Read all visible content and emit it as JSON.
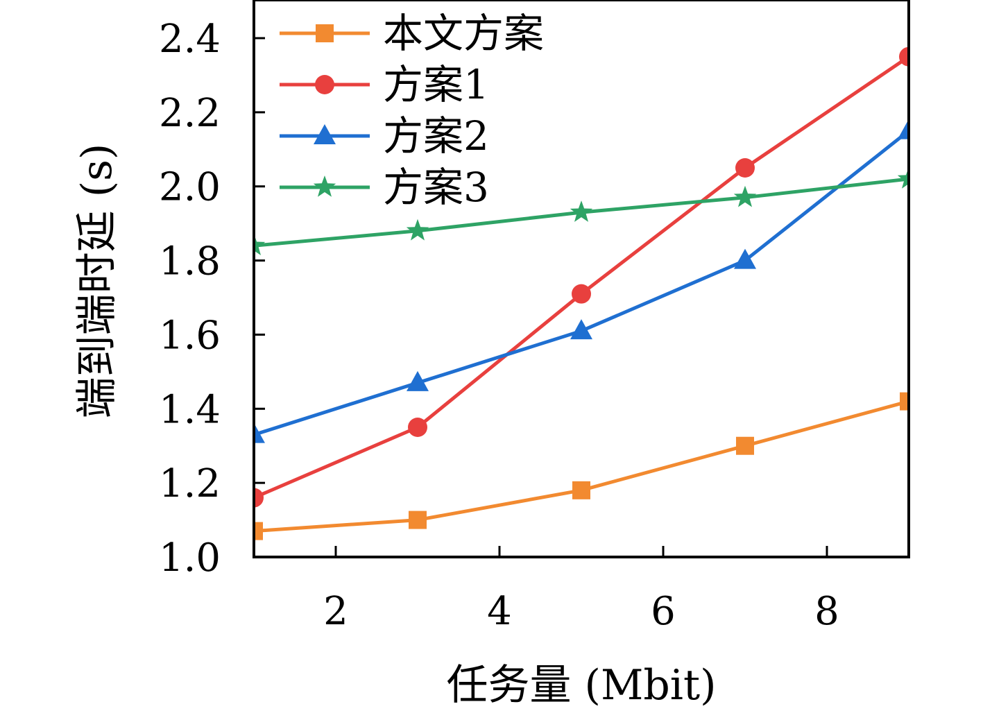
{
  "chart_data": {
    "type": "line",
    "xlabel": "任务量 (Mbit)",
    "ylabel": "端到端时延 (s)",
    "xlim": [
      1,
      9
    ],
    "ylim": [
      1.0,
      2.5
    ],
    "xticks": [
      2,
      4,
      6,
      8
    ],
    "xtick_labels": [
      "2",
      "4",
      "6",
      "8"
    ],
    "yticks": [
      1.0,
      1.2,
      1.4,
      1.6,
      1.8,
      2.0,
      2.2,
      2.4
    ],
    "ytick_labels": [
      "1.0",
      "1.2",
      "1.4",
      "1.6",
      "1.8",
      "2.0",
      "2.2",
      "2.4"
    ],
    "x": [
      1,
      3,
      5,
      7,
      9
    ],
    "legend_position": "top-left",
    "grid": false,
    "series": [
      {
        "name": "本文方案",
        "values": [
          1.07,
          1.1,
          1.18,
          1.3,
          1.42
        ],
        "color": "#F28A30",
        "marker": "square"
      },
      {
        "name": "方案1",
        "values": [
          1.16,
          1.35,
          1.71,
          2.05,
          2.35
        ],
        "color": "#E8403E",
        "marker": "circle"
      },
      {
        "name": "方案2",
        "values": [
          1.33,
          1.47,
          1.61,
          1.8,
          2.15
        ],
        "color": "#1F6FD1",
        "marker": "triangle"
      },
      {
        "name": "方案3",
        "values": [
          1.84,
          1.88,
          1.93,
          1.97,
          2.02
        ],
        "color": "#2EA365",
        "marker": "star"
      }
    ]
  }
}
